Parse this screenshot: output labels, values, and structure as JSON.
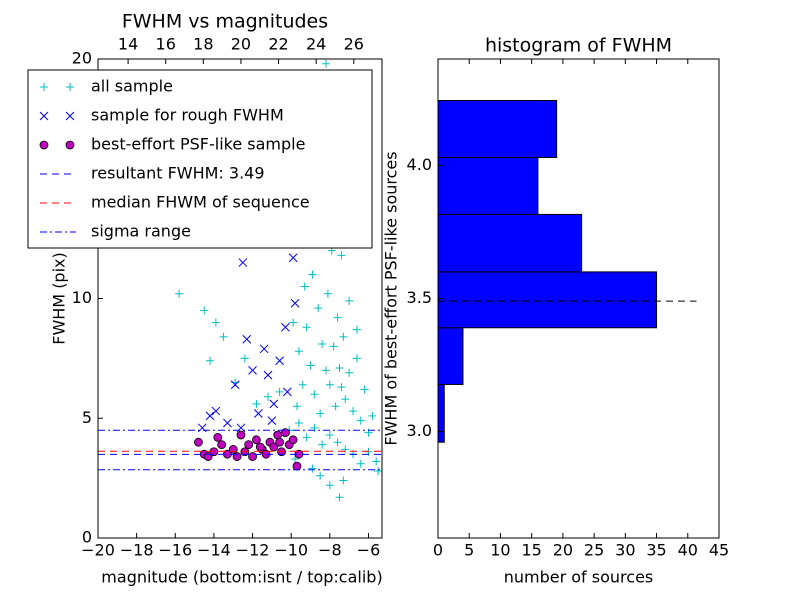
{
  "chart_data": [
    {
      "type": "scatter",
      "title": "FWHM vs magnitudes",
      "xlabel": "magnitude (bottom:isnt / top:calib)",
      "ylabel": "FWHM (pix)",
      "xlim": [
        -20,
        -5.3
      ],
      "xticks": [
        {
          "value": -20,
          "label": "−20"
        },
        {
          "value": -18,
          "label": "−18"
        },
        {
          "value": -16,
          "label": "−16"
        },
        {
          "value": -14,
          "label": "−14"
        },
        {
          "value": -12,
          "label": "−12"
        },
        {
          "value": -10,
          "label": "−10"
        },
        {
          "value": -8,
          "label": "−8"
        },
        {
          "value": -6,
          "label": "−6"
        }
      ],
      "x2lim": [
        12.4,
        27.5
      ],
      "x2ticks": [
        14,
        16,
        18,
        20,
        22,
        24,
        26
      ],
      "ylim": [
        0,
        20
      ],
      "yticks": [
        0,
        5,
        10,
        15,
        20
      ],
      "legend": "upper left",
      "series": [
        {
          "name": "all sample",
          "color": "#00bfbf",
          "marker": "plus",
          "x": [
            -15.8,
            -14.5,
            -14.2,
            -13.9,
            -13.5,
            -12.9,
            -12.4,
            -11.8,
            -11.2,
            -10.6,
            -10.1,
            -9.9,
            -9.8,
            -9.7,
            -9.6,
            -9.5,
            -9.4,
            -9.3,
            -9.2,
            -9.1,
            -9.0,
            -8.9,
            -8.8,
            -8.7,
            -8.6,
            -8.5,
            -8.4,
            -8.3,
            -8.2,
            -8.1,
            -8.0,
            -7.9,
            -7.8,
            -7.7,
            -7.6,
            -7.5,
            -7.4,
            -7.3,
            -7.2,
            -7.0,
            -6.8,
            -6.6,
            -6.4,
            -6.2,
            -6.0,
            -5.8,
            -5.6,
            -9.6,
            -9.2,
            -8.8,
            -8.4,
            -8.0,
            -7.6,
            -7.2,
            -6.8,
            -6.4,
            -9.4,
            -9.0,
            -8.6,
            -8.2,
            -7.8,
            -7.4,
            -7.0,
            -6.6,
            -8.5,
            -8.0,
            -7.5,
            -9.8,
            -8.9,
            -7.3,
            -6.0,
            -5.5
          ],
          "values": [
            10.2,
            9.5,
            7.4,
            9.0,
            8.4,
            6.5,
            7.5,
            5.6,
            5.9,
            6.1,
            4.5,
            9.0,
            12.5,
            5.5,
            7.8,
            14.0,
            6.4,
            10.5,
            8.8,
            15.5,
            7.2,
            11.0,
            6.0,
            13.2,
            9.6,
            5.2,
            8.1,
            16.5,
            7.0,
            10.2,
            6.4,
            12.0,
            8.0,
            5.5,
            9.2,
            7.1,
            6.3,
            8.4,
            5.8,
            6.9,
            5.3,
            7.5,
            4.9,
            6.2,
            4.4,
            5.1,
            3.2,
            4.8,
            4.2,
            4.6,
            3.9,
            4.3,
            4.0,
            3.7,
            3.5,
            3.1,
            18.0,
            19.2,
            17.4,
            19.8,
            14.6,
            11.8,
            9.9,
            8.7,
            2.6,
            2.2,
            1.7,
            3.3,
            2.9,
            2.4,
            3.6,
            2.8
          ]
        },
        {
          "name": "sample for rough FWHM",
          "color": "#0000ff",
          "marker": "x",
          "x": [
            -14.6,
            -14.2,
            -13.9,
            -13.3,
            -12.9,
            -12.5,
            -12.3,
            -12.0,
            -11.7,
            -11.5,
            -11.2,
            -11.0,
            -10.8,
            -10.6,
            -10.4,
            -10.2,
            -10.0,
            -9.8,
            -9.7,
            -9.6,
            -12.6,
            -11.4,
            -10.9,
            -10.3,
            -9.9
          ],
          "values": [
            4.6,
            5.1,
            5.3,
            4.8,
            6.4,
            11.5,
            8.3,
            7.0,
            5.2,
            16.8,
            6.8,
            4.9,
            17.0,
            7.4,
            12.8,
            6.1,
            18.2,
            9.8,
            13.5,
            15.5,
            4.6,
            7.9,
            5.6,
            8.8,
            11.7
          ]
        },
        {
          "name": "best-effort PSF-like sample",
          "color": "#bf00bf",
          "marker": "circle",
          "x": [
            -14.8,
            -14.5,
            -14.3,
            -14.0,
            -13.8,
            -13.6,
            -13.3,
            -13.0,
            -12.6,
            -12.4,
            -12.2,
            -12.0,
            -11.8,
            -11.5,
            -11.3,
            -11.1,
            -10.9,
            -10.7,
            -10.5,
            -10.3,
            -10.1,
            -9.9,
            -9.7,
            -9.6,
            -12.8,
            -11.6,
            -10.6
          ],
          "values": [
            4.0,
            3.5,
            3.4,
            3.6,
            4.2,
            3.9,
            3.5,
            3.7,
            4.3,
            3.6,
            3.9,
            3.4,
            4.1,
            3.7,
            3.5,
            4.0,
            3.8,
            4.3,
            3.6,
            4.4,
            3.9,
            4.1,
            3.0,
            3.5,
            3.4,
            3.8,
            4.0
          ]
        }
      ],
      "lines": [
        {
          "name": "resultant FWHM: 3.49",
          "color": "#0000ff",
          "dash": "dashed",
          "values": [
            3.49
          ]
        },
        {
          "name": "median FHWM of sequence",
          "color": "#ff0000",
          "dash": "dashed",
          "values": [
            3.62
          ]
        },
        {
          "name": "sigma range",
          "color": "#0000ff",
          "dash": "dashdot",
          "values": [
            4.5,
            2.85
          ]
        }
      ]
    },
    {
      "type": "histogram",
      "title": "histogram of FWHM",
      "orientation": "horizontal",
      "xlabel": "number of sources",
      "ylabel": "FWHM of best-effort PSF-like sources",
      "xlim": [
        0,
        45
      ],
      "xticks": [
        0,
        5,
        10,
        15,
        20,
        25,
        30,
        35,
        40,
        45
      ],
      "ylim": [
        2.6,
        4.4
      ],
      "yticks": [
        {
          "value": 3,
          "label": "3.0"
        },
        3.5,
        {
          "value": 4,
          "label": "4.0"
        }
      ],
      "bins": [
        2.96,
        3.177,
        3.39,
        3.6,
        3.816,
        4.03,
        4.244
      ],
      "values": [
        1,
        4,
        35,
        23,
        16,
        19
      ],
      "color": "#0000ff",
      "hline": {
        "value": 3.49,
        "color": "#000000",
        "dash": "dashed"
      }
    }
  ]
}
